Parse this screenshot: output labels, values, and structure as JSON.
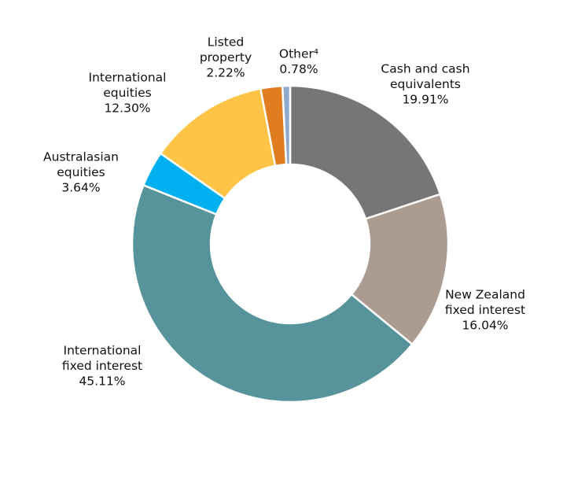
{
  "chart_data": {
    "type": "pie",
    "donut": true,
    "title": "",
    "legend": "none",
    "slices": [
      {
        "key": "cash",
        "lines": [
          "Cash and cash",
          "equivalents",
          "19.91%"
        ],
        "value": 19.91,
        "color": "#767676"
      },
      {
        "key": "nz-fixed",
        "lines": [
          "New Zealand",
          "fixed interest",
          "16.04%"
        ],
        "value": 16.04,
        "color": "#ab9b91"
      },
      {
        "key": "intl-fixed",
        "lines": [
          "International",
          "fixed interest",
          "45.11%"
        ],
        "value": 45.11,
        "color": "#57939a"
      },
      {
        "key": "aus-equities",
        "lines": [
          "Australasian",
          "equities",
          "3.64%"
        ],
        "value": 3.64,
        "color": "#00b0f0"
      },
      {
        "key": "intl-equities",
        "lines": [
          "International",
          "equities",
          "12.30%"
        ],
        "value": 12.3,
        "color": "#ffc445"
      },
      {
        "key": "listed-property",
        "lines": [
          "Listed",
          "property",
          "2.22%"
        ],
        "value": 2.22,
        "color": "#e07d1f"
      },
      {
        "key": "other",
        "lines": [
          "Other⁴",
          "0.78%"
        ],
        "value": 0.78,
        "color": "#8faacc"
      }
    ]
  }
}
